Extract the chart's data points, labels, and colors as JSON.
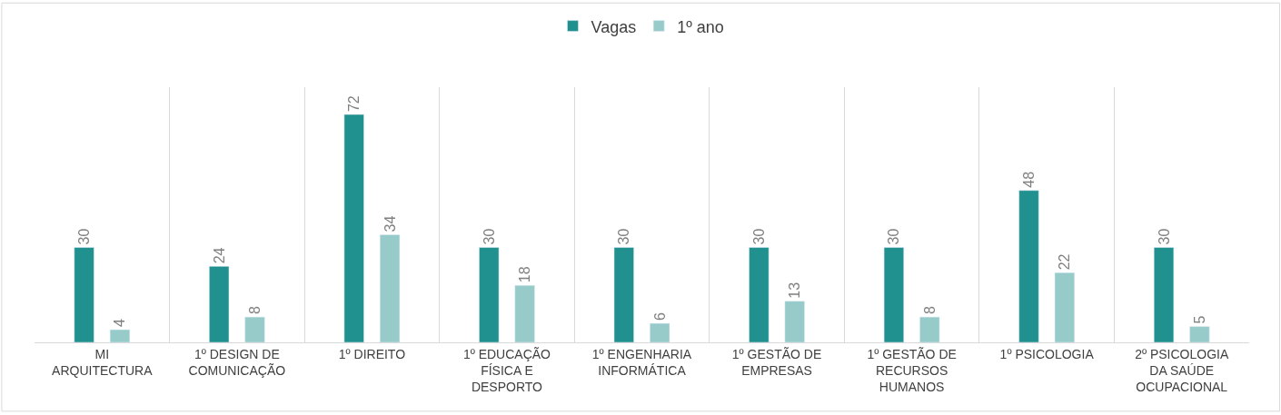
{
  "chart_data": {
    "type": "bar",
    "categories": [
      "MI ARQUITECTURA",
      "1º DESIGN DE COMUNICAÇÃO",
      "1º DIREITO",
      "1º EDUCAÇÃO FÍSICA E DESPORTO",
      "1º ENGENHARIA INFORMÁTICA",
      "1º GESTÃO DE EMPRESAS",
      "1º GESTÃO DE RECURSOS HUMANOS",
      "1º PSICOLOGIA",
      "2º PSICOLOGIA DA SAÚDE OCUPACIONAL"
    ],
    "series": [
      {
        "name": "Vagas",
        "color": "#21918f",
        "values": [
          30,
          24,
          72,
          30,
          30,
          30,
          30,
          48,
          30
        ]
      },
      {
        "name": "1º ano",
        "color": "#96cbca",
        "values": [
          4,
          8,
          34,
          18,
          6,
          13,
          8,
          22,
          5
        ]
      }
    ],
    "data_labels": true,
    "grid": "x",
    "legend": "top"
  }
}
